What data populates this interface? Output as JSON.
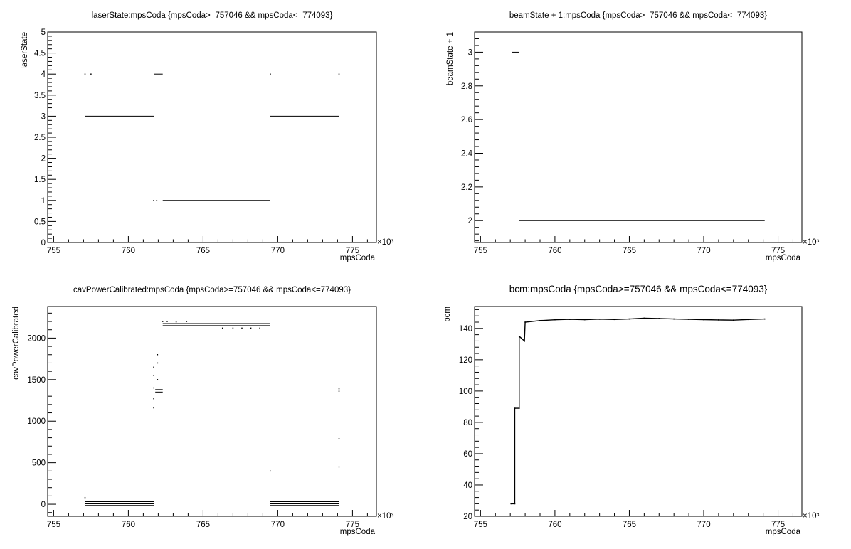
{
  "chart_data": [
    {
      "id": "laserState",
      "type": "scatter",
      "title": "laserState:mpsCoda {mpsCoda>=757046 && mpsCoda<=774093}",
      "xlabel": "mpsCoda",
      "ylabel": "laserState",
      "x_exponent_label": "×10³",
      "xlim": [
        754.6,
        776.6
      ],
      "ylim": [
        0,
        5
      ],
      "xticks": [
        755,
        760,
        765,
        770,
        775
      ],
      "yticks": [
        0,
        0.5,
        1,
        1.5,
        2,
        2.5,
        3,
        3.5,
        4,
        4.5,
        5
      ],
      "xtick_labels": [
        "755",
        "760",
        "765",
        "770",
        "775"
      ],
      "ytick_labels": [
        "0",
        "0.5",
        "1",
        "1.5",
        "2",
        "2.5",
        "3",
        "3.5",
        "4",
        "4.5",
        "5"
      ],
      "segments": [
        {
          "x": [
            757.1,
            761.7
          ],
          "y": 3
        },
        {
          "x": [
            769.5,
            774.1
          ],
          "y": 3
        },
        {
          "x": [
            762.3,
            769.5
          ],
          "y": 1
        },
        {
          "x": [
            761.7,
            762.3
          ],
          "y": 4
        }
      ],
      "points": [
        {
          "x": 757.1,
          "y": 4
        },
        {
          "x": 757.5,
          "y": 4
        },
        {
          "x": 769.5,
          "y": 4
        },
        {
          "x": 774.1,
          "y": 4
        },
        {
          "x": 761.7,
          "y": 1
        },
        {
          "x": 761.9,
          "y": 1
        }
      ]
    },
    {
      "id": "beamState",
      "type": "scatter",
      "title": "beamState + 1:mpsCoda {mpsCoda>=757046 && mpsCoda<=774093}",
      "xlabel": "mpsCoda",
      "ylabel": "beamState + 1",
      "x_exponent_label": "×10³",
      "xlim": [
        754.6,
        776.6
      ],
      "ylim": [
        1.87,
        3.12
      ],
      "xticks": [
        755,
        760,
        765,
        770,
        775
      ],
      "yticks": [
        2,
        2.2,
        2.4,
        2.6,
        2.8,
        3
      ],
      "xtick_labels": [
        "755",
        "760",
        "765",
        "770",
        "775"
      ],
      "ytick_labels": [
        "2",
        "2.2",
        "2.4",
        "2.6",
        "2.8",
        "3"
      ],
      "segments": [
        {
          "x": [
            757.1,
            757.6
          ],
          "y": 3
        },
        {
          "x": [
            757.6,
            774.1
          ],
          "y": 2
        }
      ],
      "points": []
    },
    {
      "id": "cavPower",
      "type": "scatter",
      "title": "cavPowerCalibrated:mpsCoda {mpsCoda>=757046 && mpsCoda<=774093}",
      "xlabel": "mpsCoda",
      "ylabel": "cavPowerCalibrated",
      "x_exponent_label": "×10³",
      "xlim": [
        754.6,
        776.6
      ],
      "ylim": [
        -145,
        2380
      ],
      "xticks": [
        755,
        760,
        765,
        770,
        775
      ],
      "yticks": [
        0,
        500,
        1000,
        1500,
        2000
      ],
      "xtick_labels": [
        "755",
        "760",
        "765",
        "770",
        "775"
      ],
      "ytick_labels": [
        "0",
        "500",
        "1000",
        "1500",
        "2000"
      ],
      "segments": [
        {
          "x": [
            757.1,
            761.7
          ],
          "y": 30
        },
        {
          "x": [
            757.1,
            761.7
          ],
          "y": 5
        },
        {
          "x": [
            757.1,
            761.7
          ],
          "y": -15
        },
        {
          "x": [
            769.5,
            774.1
          ],
          "y": 30
        },
        {
          "x": [
            769.5,
            774.1
          ],
          "y": 5
        },
        {
          "x": [
            769.5,
            774.1
          ],
          "y": -15
        },
        {
          "x": [
            762.3,
            769.5
          ],
          "y": 2175
        },
        {
          "x": [
            762.3,
            769.5
          ],
          "y": 2150
        },
        {
          "x": [
            761.8,
            762.3
          ],
          "y": 1350
        },
        {
          "x": [
            761.8,
            762.3
          ],
          "y": 1380
        }
      ],
      "points": [
        {
          "x": 761.7,
          "y": 1160
        },
        {
          "x": 761.7,
          "y": 1270
        },
        {
          "x": 761.7,
          "y": 1400
        },
        {
          "x": 761.7,
          "y": 1550
        },
        {
          "x": 761.7,
          "y": 1650
        },
        {
          "x": 761.95,
          "y": 1700
        },
        {
          "x": 761.95,
          "y": 1800
        },
        {
          "x": 761.95,
          "y": 1500
        },
        {
          "x": 762.3,
          "y": 2200
        },
        {
          "x": 762.6,
          "y": 2200
        },
        {
          "x": 763.2,
          "y": 2195
        },
        {
          "x": 763.9,
          "y": 2200
        },
        {
          "x": 766.3,
          "y": 2120
        },
        {
          "x": 767.0,
          "y": 2120
        },
        {
          "x": 767.6,
          "y": 2120
        },
        {
          "x": 768.2,
          "y": 2120
        },
        {
          "x": 768.8,
          "y": 2120
        },
        {
          "x": 769.5,
          "y": 400
        },
        {
          "x": 757.1,
          "y": 80
        },
        {
          "x": 774.1,
          "y": 1390
        },
        {
          "x": 774.1,
          "y": 1360
        },
        {
          "x": 774.1,
          "y": 790
        },
        {
          "x": 774.1,
          "y": 450
        }
      ]
    },
    {
      "id": "bcm",
      "type": "line",
      "title": "bcm:mpsCoda {mpsCoda>=757046 && mpsCoda<=774093}",
      "xlabel": "mpsCoda",
      "ylabel": "bcm",
      "x_exponent_label": "×10³",
      "xlim": [
        754.6,
        776.6
      ],
      "ylim": [
        20,
        154
      ],
      "xticks": [
        755,
        760,
        765,
        770,
        775
      ],
      "yticks": [
        20,
        40,
        60,
        80,
        100,
        120,
        140
      ],
      "xtick_labels": [
        "755",
        "760",
        "765",
        "770",
        "775"
      ],
      "ytick_labels": [
        "20",
        "40",
        "60",
        "80",
        "100",
        "120",
        "140"
      ],
      "series": [
        {
          "x": [
            757.05,
            757.3,
            757.3,
            757.6,
            757.6,
            757.95,
            758.0,
            759.0,
            760.0,
            761.0,
            762.0,
            763.0,
            764.0,
            765.0,
            766.0,
            767.0,
            768.0,
            769.0,
            770.0,
            771.0,
            772.0,
            773.0,
            774.1
          ],
          "y": [
            28,
            28,
            89,
            89,
            135,
            132,
            144,
            145,
            145.5,
            145.8,
            145.6,
            145.9,
            145.7,
            146.0,
            146.5,
            146.3,
            146.0,
            145.8,
            145.6,
            145.4,
            145.3,
            145.7,
            146.0
          ]
        }
      ]
    }
  ]
}
